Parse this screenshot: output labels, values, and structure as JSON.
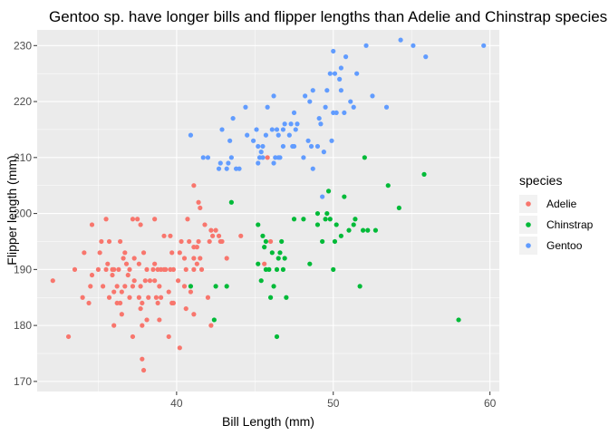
{
  "chart_data": {
    "type": "scatter",
    "title": "Gentoo sp. have longer bills and flipper lengths than Adelie and Chinstrap species",
    "xlabel": "Bill Length (mm)",
    "ylabel": "Flipper length (mm)",
    "xlim": [
      31.1,
      60.6
    ],
    "ylim": [
      168.2,
      232.8
    ],
    "x_ticks": [
      40,
      50,
      60
    ],
    "y_ticks": [
      170,
      180,
      190,
      200,
      210,
      220,
      230
    ],
    "grid": true,
    "panel_background": "#EBEBEB",
    "legend": {
      "title": "species",
      "position": "right"
    },
    "series": [
      {
        "name": "Adelie",
        "color": "#F8766D",
        "points": [
          [
            32.1,
            188
          ],
          [
            33.1,
            178
          ],
          [
            33.5,
            190
          ],
          [
            34.0,
            185
          ],
          [
            34.1,
            193
          ],
          [
            34.4,
            184
          ],
          [
            34.5,
            187
          ],
          [
            34.6,
            189
          ],
          [
            34.6,
            198
          ],
          [
            35.0,
            190
          ],
          [
            35.1,
            193
          ],
          [
            35.2,
            195
          ],
          [
            35.3,
            187
          ],
          [
            35.5,
            190
          ],
          [
            35.5,
            199
          ],
          [
            35.6,
            191
          ],
          [
            35.7,
            185
          ],
          [
            35.7,
            195
          ],
          [
            35.9,
            189
          ],
          [
            35.9,
            190
          ],
          [
            36.0,
            180
          ],
          [
            36.0,
            186
          ],
          [
            36.0,
            190
          ],
          [
            36.2,
            184
          ],
          [
            36.2,
            187
          ],
          [
            36.3,
            190
          ],
          [
            36.4,
            184
          ],
          [
            36.4,
            195
          ],
          [
            36.5,
            182
          ],
          [
            36.5,
            186
          ],
          [
            36.6,
            192
          ],
          [
            36.7,
            187
          ],
          [
            36.7,
            193
          ],
          [
            36.8,
            191
          ],
          [
            36.9,
            189
          ],
          [
            37.0,
            185
          ],
          [
            37.0,
            190
          ],
          [
            37.2,
            178
          ],
          [
            37.2,
            187
          ],
          [
            37.2,
            199
          ],
          [
            37.3,
            188
          ],
          [
            37.3,
            192
          ],
          [
            37.5,
            199
          ],
          [
            37.6,
            185
          ],
          [
            37.6,
            191
          ],
          [
            37.7,
            183
          ],
          [
            37.7,
            187
          ],
          [
            37.7,
            198
          ],
          [
            37.8,
            174
          ],
          [
            37.8,
            180
          ],
          [
            37.8,
            184
          ],
          [
            37.9,
            172
          ],
          [
            37.9,
            193
          ],
          [
            38.0,
            188
          ],
          [
            38.1,
            181
          ],
          [
            38.1,
            190
          ],
          [
            38.2,
            185
          ],
          [
            38.3,
            188
          ],
          [
            38.5,
            190
          ],
          [
            38.6,
            188
          ],
          [
            38.6,
            191
          ],
          [
            38.6,
            199
          ],
          [
            38.7,
            185
          ],
          [
            38.8,
            184
          ],
          [
            38.8,
            190
          ],
          [
            38.9,
            181
          ],
          [
            38.9,
            187
          ],
          [
            39.0,
            185
          ],
          [
            39.0,
            190
          ],
          [
            39.2,
            190
          ],
          [
            39.2,
            196
          ],
          [
            39.3,
            190
          ],
          [
            39.5,
            178
          ],
          [
            39.5,
            186
          ],
          [
            39.6,
            190
          ],
          [
            39.6,
            196
          ],
          [
            39.7,
            184
          ],
          [
            39.7,
            193
          ],
          [
            39.8,
            184
          ],
          [
            39.8,
            190
          ],
          [
            40.1,
            188
          ],
          [
            40.2,
            176
          ],
          [
            40.2,
            193
          ],
          [
            40.3,
            195
          ],
          [
            40.5,
            187
          ],
          [
            40.5,
            192
          ],
          [
            40.6,
            183
          ],
          [
            40.6,
            190
          ],
          [
            40.7,
            199
          ],
          [
            40.8,
            195
          ],
          [
            40.9,
            186
          ],
          [
            41.1,
            182
          ],
          [
            41.1,
            190
          ],
          [
            41.1,
            192
          ],
          [
            41.1,
            194
          ],
          [
            41.1,
            205
          ],
          [
            41.3,
            191
          ],
          [
            41.3,
            194
          ],
          [
            41.4,
            195
          ],
          [
            41.4,
            202
          ],
          [
            41.5,
            192
          ],
          [
            41.5,
            201
          ],
          [
            41.6,
            190
          ],
          [
            41.8,
            198
          ],
          [
            42.0,
            185
          ],
          [
            42.1,
            195
          ],
          [
            42.2,
            180
          ],
          [
            42.2,
            197
          ],
          [
            42.3,
            196
          ],
          [
            42.5,
            197
          ],
          [
            42.7,
            196
          ],
          [
            42.8,
            195
          ],
          [
            42.9,
            195
          ],
          [
            43.2,
            192
          ],
          [
            44.1,
            196
          ],
          [
            45.6,
            191
          ],
          [
            45.8,
            210
          ],
          [
            46.0,
            195
          ]
        ]
      },
      {
        "name": "Chinstrap",
        "color": "#00BA38",
        "points": [
          [
            40.9,
            187
          ],
          [
            42.4,
            181
          ],
          [
            42.5,
            187
          ],
          [
            43.2,
            187
          ],
          [
            43.5,
            202
          ],
          [
            45.2,
            191
          ],
          [
            45.2,
            198
          ],
          [
            45.4,
            188
          ],
          [
            45.5,
            196
          ],
          [
            45.6,
            194
          ],
          [
            45.7,
            190
          ],
          [
            45.7,
            195
          ],
          [
            45.9,
            190
          ],
          [
            46.0,
            185
          ],
          [
            46.1,
            193
          ],
          [
            46.2,
            187
          ],
          [
            46.4,
            178
          ],
          [
            46.4,
            190
          ],
          [
            46.5,
            192
          ],
          [
            46.6,
            193
          ],
          [
            46.7,
            195
          ],
          [
            46.8,
            190
          ],
          [
            46.9,
            192
          ],
          [
            47.0,
            185
          ],
          [
            47.5,
            199
          ],
          [
            48.1,
            199
          ],
          [
            48.5,
            191
          ],
          [
            49.0,
            198
          ],
          [
            49.0,
            200
          ],
          [
            49.3,
            195
          ],
          [
            49.5,
            199
          ],
          [
            49.6,
            200
          ],
          [
            49.7,
            204
          ],
          [
            49.8,
            199
          ],
          [
            50.0,
            190
          ],
          [
            50.1,
            195
          ],
          [
            50.2,
            198
          ],
          [
            50.5,
            196
          ],
          [
            50.7,
            203
          ],
          [
            51.0,
            197
          ],
          [
            51.3,
            198
          ],
          [
            51.4,
            199
          ],
          [
            51.7,
            187
          ],
          [
            51.9,
            197
          ],
          [
            52.0,
            210
          ],
          [
            52.2,
            197
          ],
          [
            52.7,
            197
          ],
          [
            53.5,
            205
          ],
          [
            54.2,
            201
          ],
          [
            55.8,
            207
          ],
          [
            58.0,
            181
          ]
        ]
      },
      {
        "name": "Gentoo",
        "color": "#619CFF",
        "points": [
          [
            40.9,
            214
          ],
          [
            41.7,
            210
          ],
          [
            42.0,
            210
          ],
          [
            42.7,
            208
          ],
          [
            42.8,
            209
          ],
          [
            42.9,
            215
          ],
          [
            43.2,
            208
          ],
          [
            43.3,
            209
          ],
          [
            43.4,
            213
          ],
          [
            43.5,
            210
          ],
          [
            43.6,
            217
          ],
          [
            43.8,
            208
          ],
          [
            44.0,
            208
          ],
          [
            44.4,
            219
          ],
          [
            44.5,
            214
          ],
          [
            44.9,
            213
          ],
          [
            45.1,
            215
          ],
          [
            45.2,
            209
          ],
          [
            45.2,
            212
          ],
          [
            45.3,
            210
          ],
          [
            45.4,
            211
          ],
          [
            45.5,
            210
          ],
          [
            45.5,
            212
          ],
          [
            45.7,
            214
          ],
          [
            45.8,
            219
          ],
          [
            46.1,
            215
          ],
          [
            46.2,
            209
          ],
          [
            46.2,
            221
          ],
          [
            46.3,
            210
          ],
          [
            46.4,
            215
          ],
          [
            46.5,
            210
          ],
          [
            46.5,
            214
          ],
          [
            46.6,
            210
          ],
          [
            46.8,
            212
          ],
          [
            46.8,
            215
          ],
          [
            46.9,
            216
          ],
          [
            47.2,
            214
          ],
          [
            47.3,
            216
          ],
          [
            47.4,
            212
          ],
          [
            47.5,
            212
          ],
          [
            47.5,
            218
          ],
          [
            47.6,
            215
          ],
          [
            47.7,
            216
          ],
          [
            48.1,
            210
          ],
          [
            48.2,
            221
          ],
          [
            48.4,
            213
          ],
          [
            48.5,
            220
          ],
          [
            48.6,
            212
          ],
          [
            48.7,
            208
          ],
          [
            48.7,
            222
          ],
          [
            49.0,
            212
          ],
          [
            49.1,
            217
          ],
          [
            49.2,
            216
          ],
          [
            49.3,
            203
          ],
          [
            49.4,
            211
          ],
          [
            49.5,
            219
          ],
          [
            49.6,
            222
          ],
          [
            49.8,
            225
          ],
          [
            49.9,
            213
          ],
          [
            50.0,
            218
          ],
          [
            50.0,
            229
          ],
          [
            50.1,
            225
          ],
          [
            50.2,
            218
          ],
          [
            50.4,
            224
          ],
          [
            50.5,
            222
          ],
          [
            50.5,
            226
          ],
          [
            50.7,
            218
          ],
          [
            50.8,
            228
          ],
          [
            51.1,
            220
          ],
          [
            51.3,
            219
          ],
          [
            51.5,
            225
          ],
          [
            52.1,
            230
          ],
          [
            52.5,
            221
          ],
          [
            53.4,
            219
          ],
          [
            54.3,
            231
          ],
          [
            55.1,
            230
          ],
          [
            55.9,
            228
          ],
          [
            59.6,
            230
          ]
        ]
      }
    ]
  }
}
